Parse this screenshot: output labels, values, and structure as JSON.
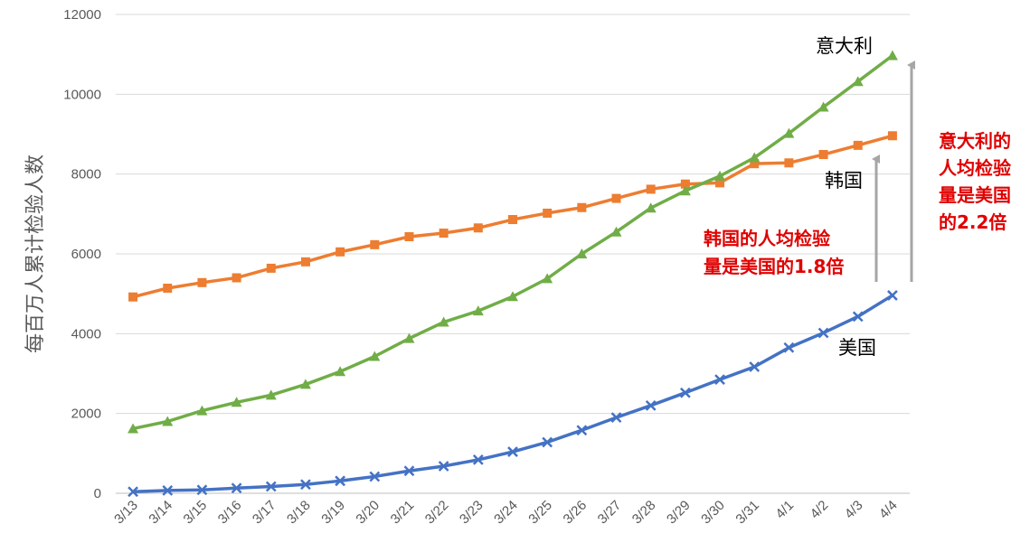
{
  "chart_data": {
    "type": "line",
    "title": "",
    "xlabel": "",
    "ylabel": "每百万人累计检验人数",
    "categories": [
      "3/13",
      "3/14",
      "3/15",
      "3/16",
      "3/17",
      "3/18",
      "3/19",
      "3/20",
      "3/21",
      "3/22",
      "3/23",
      "3/24",
      "3/25",
      "3/26",
      "3/27",
      "3/28",
      "3/29",
      "3/30",
      "3/31",
      "4/1",
      "4/2",
      "4/3",
      "4/4"
    ],
    "ylim": [
      0,
      12000
    ],
    "yticks": [
      "0",
      "2000",
      "4000",
      "6000",
      "8000",
      "10000",
      "12000"
    ],
    "grid": true,
    "legend": "none",
    "series": [
      {
        "name": "韩国",
        "color": "#ED7D31",
        "marker": "square",
        "values": [
          4920,
          5140,
          5280,
          5400,
          5640,
          5800,
          6050,
          6230,
          6430,
          6520,
          6650,
          6860,
          7020,
          7160,
          7390,
          7620,
          7750,
          7780,
          8260,
          8280,
          8490,
          8720,
          8960
        ]
      },
      {
        "name": "意大利",
        "color": "#70AD47",
        "marker": "triangle",
        "values": [
          1620,
          1800,
          2070,
          2280,
          2460,
          2730,
          3050,
          3430,
          3880,
          4290,
          4570,
          4930,
          5380,
          6000,
          6550,
          7150,
          7580,
          7950,
          8410,
          9020,
          9680,
          10320,
          10970
        ]
      },
      {
        "name": "美国",
        "color": "#4472C4",
        "marker": "x",
        "values": [
          40,
          70,
          85,
          130,
          170,
          220,
          310,
          420,
          560,
          680,
          840,
          1040,
          1280,
          1580,
          1900,
          2200,
          2520,
          2850,
          3170,
          3650,
          4020,
          4430,
          4960
        ]
      }
    ],
    "annotations": {
      "korea_note": [
        "韩国的人均检验",
        "量是美国的1.8倍"
      ],
      "italy_note": [
        "意大利的",
        "人均检验",
        "量是美国",
        "的2.2倍"
      ],
      "arrow_color": "#A6A6A6",
      "note_color": "#E00000"
    }
  }
}
